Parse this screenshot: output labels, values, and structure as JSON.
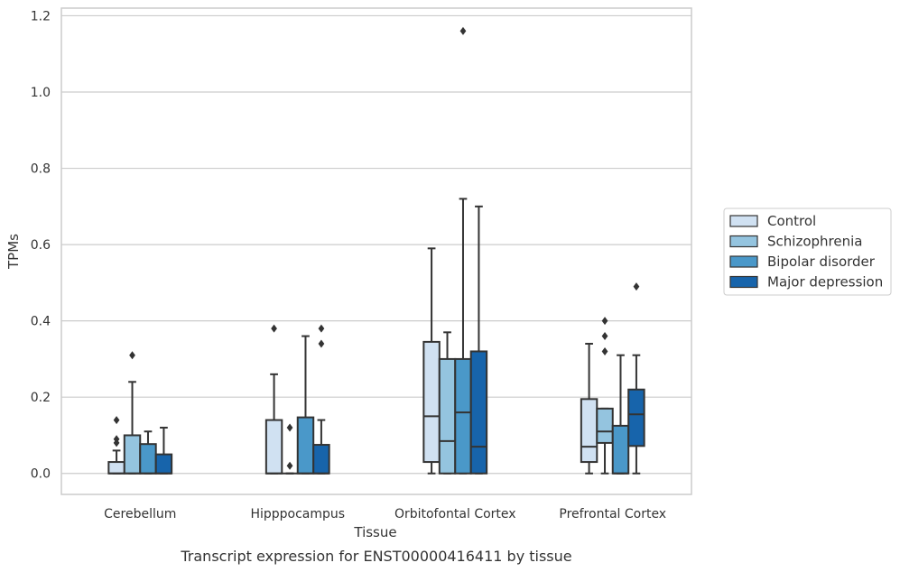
{
  "chart_data": {
    "type": "box",
    "title": "",
    "caption": "Transcript expression for ENST00000416411 by tissue",
    "xlabel": "Tissue",
    "ylabel": "TPMs",
    "ylim": [
      -0.055,
      1.22
    ],
    "yticks": [
      0.0,
      0.2,
      0.4,
      0.6,
      0.8,
      1.0,
      1.2
    ],
    "ytick_labels": [
      "0.0",
      "0.2",
      "0.4",
      "0.6",
      "0.8",
      "1.0",
      "1.2"
    ],
    "grid": "horizontal",
    "legend_position": "right",
    "categories": [
      "Cerebellum",
      "Hipppocampus",
      "Orbitofontal Cortex",
      "Prefrontal Cortex"
    ],
    "series": [
      {
        "name": "Control",
        "color": "#d0e1f2",
        "boxes": [
          {
            "whisker_low": 0.0,
            "q1": 0.0,
            "median": 0.0,
            "q3": 0.03,
            "whisker_high": 0.06,
            "outliers": [
              0.08,
              0.09,
              0.14
            ]
          },
          {
            "whisker_low": 0.0,
            "q1": 0.0,
            "median": 0.0,
            "q3": 0.14,
            "whisker_high": 0.26,
            "outliers": [
              0.38
            ]
          },
          {
            "whisker_low": 0.0,
            "q1": 0.03,
            "median": 0.15,
            "q3": 0.345,
            "whisker_high": 0.59,
            "outliers": []
          },
          {
            "whisker_low": 0.0,
            "q1": 0.03,
            "median": 0.07,
            "q3": 0.195,
            "whisker_high": 0.34,
            "outliers": []
          }
        ]
      },
      {
        "name": "Schizophrenia",
        "color": "#94c4df",
        "boxes": [
          {
            "whisker_low": 0.0,
            "q1": 0.0,
            "median": 0.0,
            "q3": 0.1,
            "whisker_high": 0.24,
            "outliers": [
              0.31
            ]
          },
          {
            "whisker_low": 0.0,
            "q1": 0.0,
            "median": 0.0,
            "q3": 0.0,
            "whisker_high": 0.0,
            "outliers": [
              0.02,
              0.12
            ]
          },
          {
            "whisker_low": 0.0,
            "q1": 0.0,
            "median": 0.085,
            "q3": 0.3,
            "whisker_high": 0.37,
            "outliers": []
          },
          {
            "whisker_low": 0.0,
            "q1": 0.08,
            "median": 0.11,
            "q3": 0.17,
            "whisker_high": 0.17,
            "outliers": [
              0.32,
              0.36,
              0.4
            ]
          }
        ]
      },
      {
        "name": "Bipolar disorder",
        "color": "#4a98c9",
        "boxes": [
          {
            "whisker_low": 0.0,
            "q1": 0.0,
            "median": 0.0,
            "q3": 0.077,
            "whisker_high": 0.11,
            "outliers": []
          },
          {
            "whisker_low": 0.0,
            "q1": 0.0,
            "median": 0.0,
            "q3": 0.147,
            "whisker_high": 0.36,
            "outliers": []
          },
          {
            "whisker_low": 0.0,
            "q1": 0.0,
            "median": 0.16,
            "q3": 0.3,
            "whisker_high": 0.72,
            "outliers": [
              1.16
            ]
          },
          {
            "whisker_low": 0.0,
            "q1": 0.0,
            "median": 0.0,
            "q3": 0.125,
            "whisker_high": 0.31,
            "outliers": []
          }
        ]
      },
      {
        "name": "Major depression",
        "color": "#1764ab",
        "boxes": [
          {
            "whisker_low": 0.0,
            "q1": 0.0,
            "median": 0.0,
            "q3": 0.05,
            "whisker_high": 0.12,
            "outliers": []
          },
          {
            "whisker_low": 0.0,
            "q1": 0.0,
            "median": 0.0,
            "q3": 0.075,
            "whisker_high": 0.14,
            "outliers": [
              0.34,
              0.38
            ]
          },
          {
            "whisker_low": 0.0,
            "q1": 0.0,
            "median": 0.07,
            "q3": 0.32,
            "whisker_high": 0.7,
            "outliers": []
          },
          {
            "whisker_low": 0.0,
            "q1": 0.072,
            "median": 0.155,
            "q3": 0.22,
            "whisker_high": 0.31,
            "outliers": [
              0.49
            ]
          }
        ]
      }
    ]
  }
}
